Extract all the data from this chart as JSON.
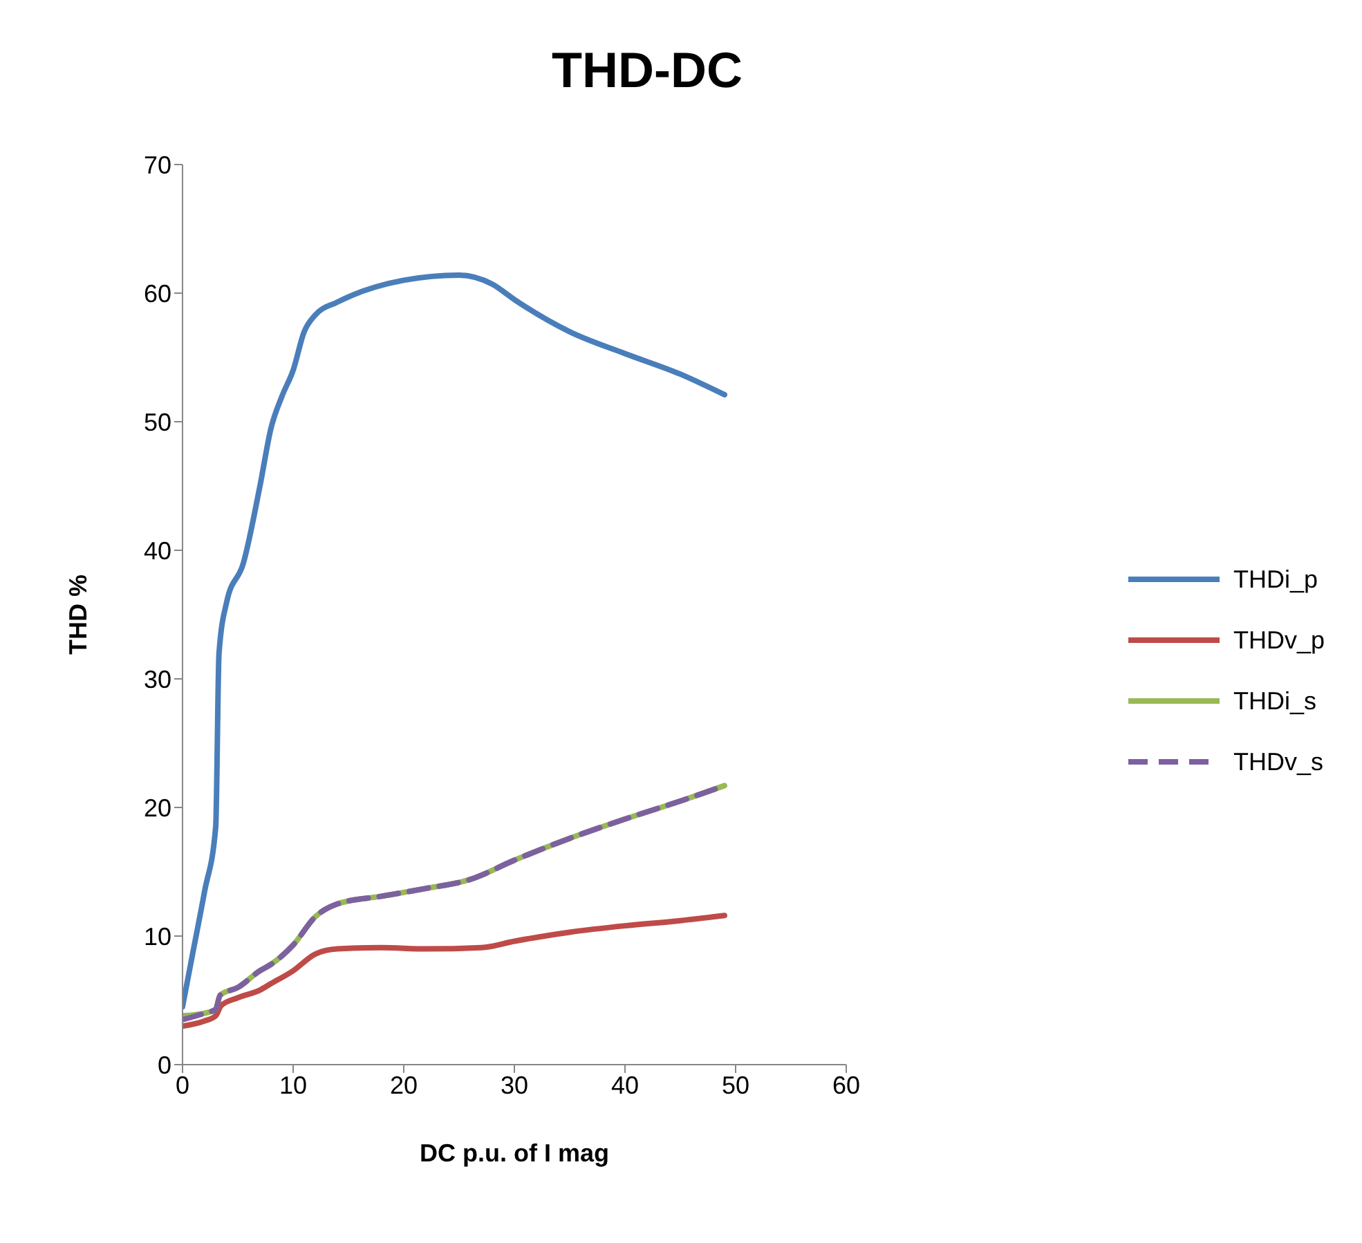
{
  "chart_data": {
    "type": "line",
    "title": "THD-DC",
    "xlabel": "DC p.u. of I mag",
    "ylabel": "THD %",
    "xlim": [
      0,
      60
    ],
    "xticks": [
      0,
      10,
      20,
      30,
      40,
      50,
      60
    ],
    "ylim": [
      0,
      70
    ],
    "yticks": [
      0,
      10,
      20,
      30,
      40,
      50,
      60,
      70
    ],
    "grid": false,
    "legend": "right",
    "marker": "none",
    "x": [
      0,
      1,
      2,
      3,
      3.3,
      4,
      5.5,
      7,
      8,
      9,
      10,
      11,
      12,
      14,
      20,
      25,
      28,
      30,
      35,
      40,
      45,
      49
    ],
    "series": [
      {
        "name": "THDi_p",
        "color": "#4a7ebb",
        "line_style": "solid",
        "values": [
          4.5,
          9,
          13.5,
          18.5,
          32,
          36,
          39,
          45,
          49.5,
          52,
          54,
          57,
          58.3,
          59.3,
          61,
          61.4,
          60.7,
          59.5,
          57,
          55.3,
          53.7,
          52.1
        ]
      },
      {
        "name": "THDv_p",
        "color": "#be4b48",
        "line_style": "solid",
        "x": [
          0,
          2,
          3,
          3.5,
          5,
          7,
          8,
          10,
          12,
          14,
          18,
          22,
          27,
          30,
          35,
          40,
          45,
          49
        ],
        "values": [
          3,
          3.4,
          3.8,
          4.6,
          5.2,
          5.8,
          6.3,
          7.3,
          8.6,
          9,
          9.1,
          9,
          9.1,
          9.6,
          10.3,
          10.8,
          11.2,
          11.6
        ]
      },
      {
        "name": "THDi_s",
        "color": "#98b954",
        "line_style": "solid",
        "x": [
          0,
          2,
          3,
          3.4,
          5,
          7,
          8,
          10,
          12,
          14,
          18,
          22,
          26,
          30,
          35,
          40,
          45,
          49
        ],
        "values": [
          3.8,
          4,
          4.3,
          5.4,
          6,
          7.3,
          7.8,
          9.3,
          11.5,
          12.5,
          13.1,
          13.7,
          14.4,
          15.9,
          17.6,
          19.1,
          20.5,
          21.7
        ]
      },
      {
        "name": "THDv_s",
        "color": "#7d60a0",
        "line_style": "dashed",
        "x": [
          0,
          2,
          3,
          3.4,
          5,
          7,
          8,
          10,
          12,
          14,
          18,
          22,
          26,
          30,
          35,
          40,
          45,
          49
        ],
        "values": [
          3.5,
          4,
          4.3,
          5.4,
          6,
          7.3,
          7.8,
          9.3,
          11.5,
          12.5,
          13.1,
          13.7,
          14.4,
          15.9,
          17.6,
          19.1,
          20.5,
          21.7
        ]
      }
    ]
  }
}
